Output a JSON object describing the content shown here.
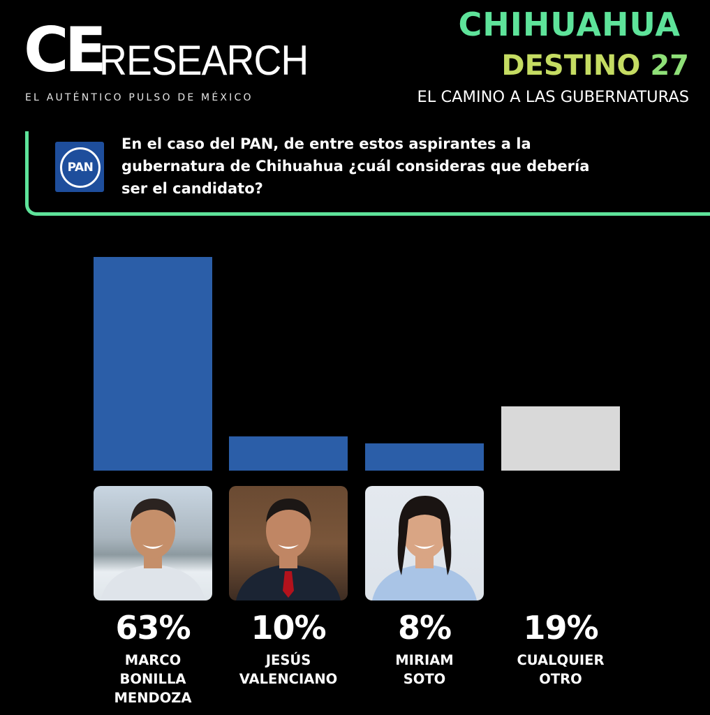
{
  "brand": {
    "logo_ce": "CE",
    "logo_research": "RESEARCH",
    "tagline": "EL AUTÉNTICO PULSO DE MÉXICO"
  },
  "header": {
    "title": "CHIHUAHUA",
    "subtitle_word1": "DESTINO",
    "subtitle_word2": "27",
    "subtitle2": "EL CAMINO A LAS GUBERNATURAS"
  },
  "question": {
    "party_logo_text": "PAN",
    "text": "En el caso del PAN, de entre estos aspirantes a la gubernatura de Chihuahua ¿cuál consideras que debería ser el candidato?"
  },
  "chart_data": {
    "type": "bar",
    "categories": [
      "MARCO BONILLA MENDOZA",
      "JESÚS VALENCIANO",
      "MIRIAM SOTO",
      "CUALQUIER OTRO"
    ],
    "name_lines": [
      [
        "MARCO",
        "BONILLA",
        "MENDOZA"
      ],
      [
        "JESÚS",
        "VALENCIANO"
      ],
      [
        "MIRIAM",
        "SOTO"
      ],
      [
        "CUALQUIER",
        "OTRO"
      ]
    ],
    "values": [
      63,
      10,
      8,
      19
    ],
    "value_labels": [
      "63%",
      "10%",
      "8%",
      "19%"
    ],
    "bar_colors": [
      "#2b5ea8",
      "#2b5ea8",
      "#2b5ea8",
      "#d9d9d9"
    ],
    "ylim": [
      0,
      63
    ],
    "has_photo": [
      true,
      true,
      true,
      false
    ]
  }
}
